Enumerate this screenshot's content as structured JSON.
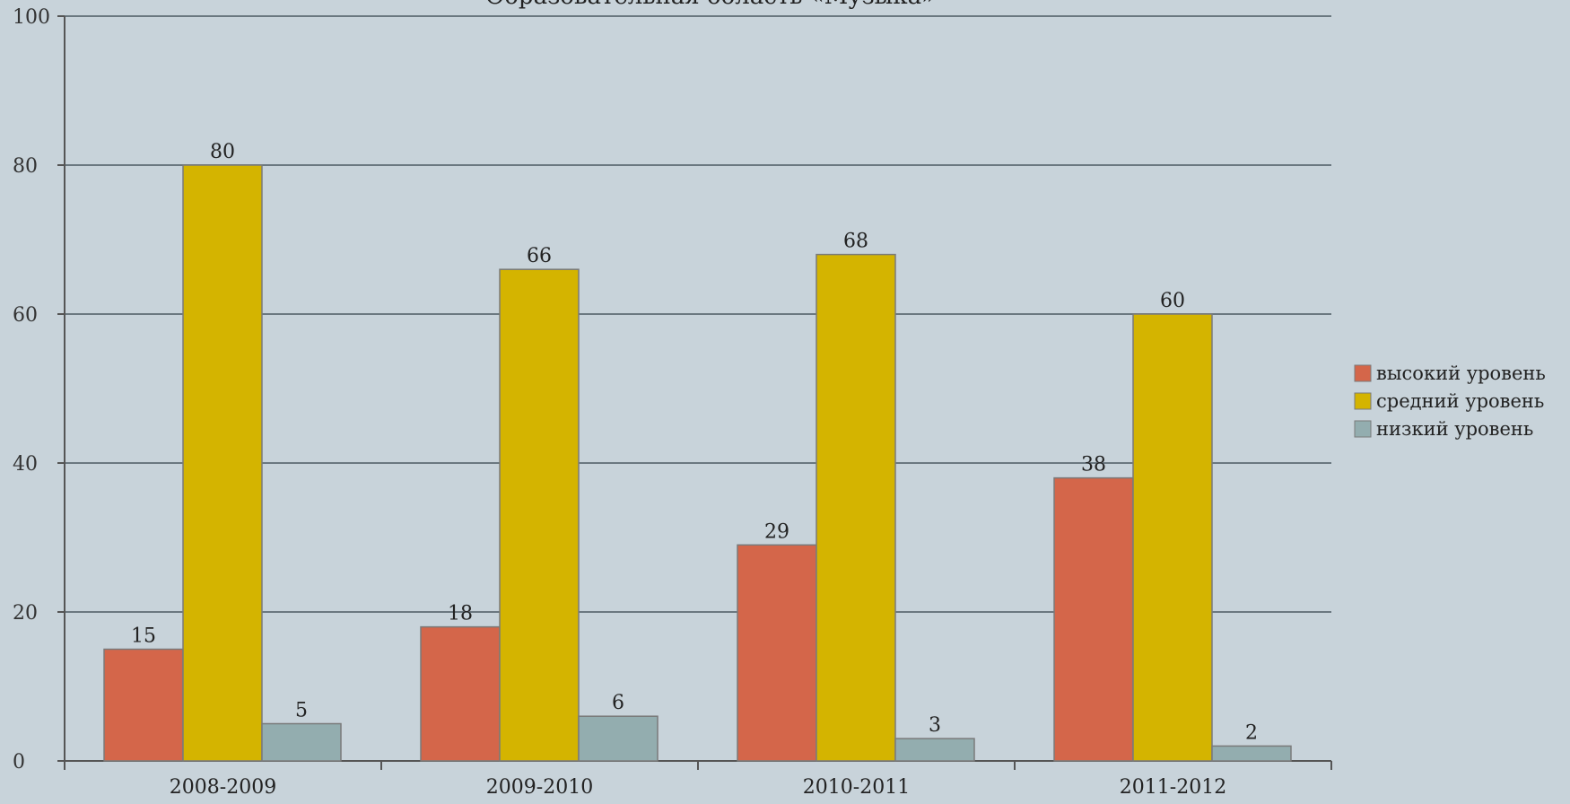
{
  "chart_data": {
    "type": "bar",
    "title": "Образовательная область «Музыка»",
    "categories": [
      "2008-2009",
      "2009-2010",
      "2010-2011",
      "2011-2012"
    ],
    "series": [
      {
        "name": "высокий уровень",
        "color": "#d4664a",
        "values": [
          15,
          18,
          29,
          38
        ]
      },
      {
        "name": "средний уровень",
        "color": "#d4b400",
        "values": [
          80,
          66,
          68,
          60
        ]
      },
      {
        "name": "низкий уровень",
        "color": "#93adaf",
        "values": [
          5,
          6,
          3,
          2
        ]
      }
    ],
    "ylim": [
      0,
      100
    ],
    "yticks": [
      "0",
      "20",
      "40",
      "60",
      "80",
      "100"
    ],
    "grid": true,
    "legend_position": "right",
    "background_color": "#c8d3da",
    "gridline_color": "#6b7880"
  }
}
